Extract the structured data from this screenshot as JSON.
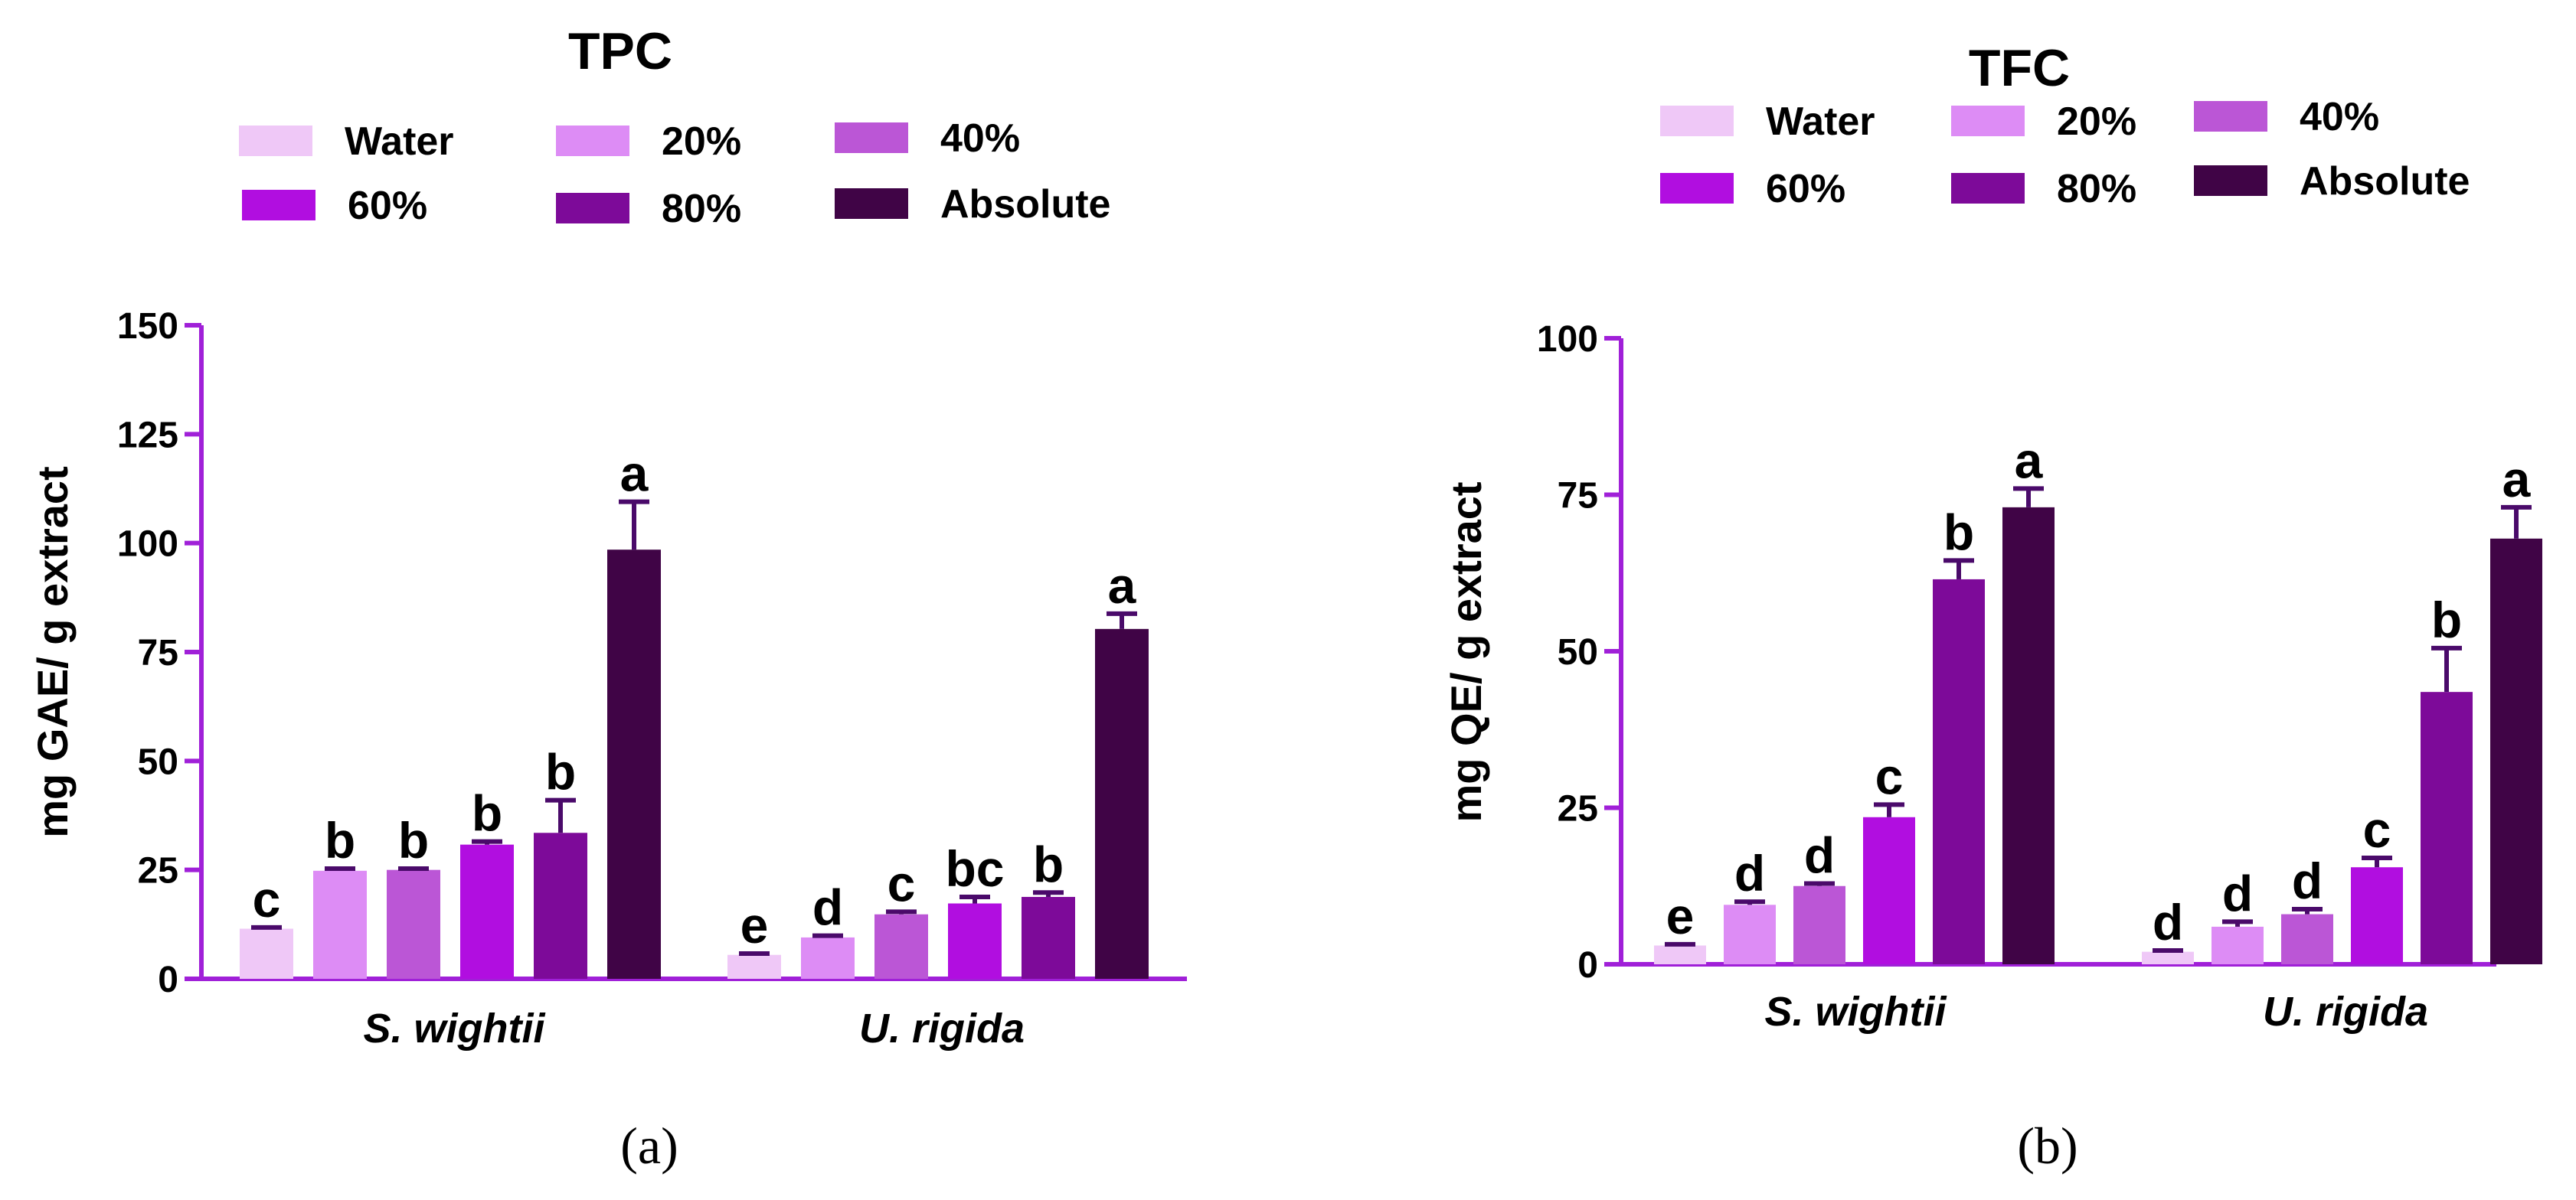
{
  "colors": {
    "axis": "#a020d8",
    "error": "#4a0a6a",
    "series": [
      "#efc8f7",
      "#dd8cf5",
      "#bb56d6",
      "#b10ee0",
      "#7d0a99",
      "#400446"
    ]
  },
  "chart_data": [
    {
      "type": "bar",
      "title": "TPC",
      "panel_label": "(a)",
      "ylabel": "mg GAE/ g extract",
      "xlabel": "",
      "ylim": [
        0,
        150
      ],
      "yticks": [
        "0",
        "25",
        "50",
        "75",
        "100",
        "125",
        "150"
      ],
      "categories": [
        "S. wightii",
        "U. rigida"
      ],
      "series": [
        {
          "name": "Water",
          "values": [
            11.5,
            5.5
          ],
          "errors": [
            0.3,
            0.3
          ],
          "letters": [
            "c",
            "e"
          ]
        },
        {
          "name": "20%",
          "values": [
            24.8,
            9.5
          ],
          "errors": [
            0.5,
            0.4
          ],
          "letters": [
            "b",
            "d"
          ]
        },
        {
          "name": "40%",
          "values": [
            25.0,
            14.8
          ],
          "errors": [
            0.3,
            0.6
          ],
          "letters": [
            "b",
            "c"
          ]
        },
        {
          "name": "60%",
          "values": [
            30.8,
            17.3
          ],
          "errors": [
            0.7,
            1.5
          ],
          "letters": [
            "b",
            "bc"
          ]
        },
        {
          "name": "80%",
          "values": [
            33.5,
            18.8
          ],
          "errors": [
            7.5,
            1.0
          ],
          "letters": [
            "b",
            "b"
          ]
        },
        {
          "name": "Absolute",
          "values": [
            98.5,
            80.3
          ],
          "errors": [
            11.0,
            3.5
          ],
          "letters": [
            "a",
            "a"
          ]
        }
      ]
    },
    {
      "type": "bar",
      "title": "TFC",
      "panel_label": "(b)",
      "ylabel": "mg QE/ g extract",
      "xlabel": "",
      "ylim": [
        0,
        100
      ],
      "yticks": [
        "0",
        "25",
        "50",
        "75",
        "100"
      ],
      "categories": [
        "S. wightii",
        "U. rigida"
      ],
      "series": [
        {
          "name": "Water",
          "values": [
            3.0,
            2.0
          ],
          "errors": [
            0.2,
            0.2
          ],
          "letters": [
            "e",
            "d"
          ]
        },
        {
          "name": "20%",
          "values": [
            9.5,
            6.0
          ],
          "errors": [
            0.5,
            0.8
          ],
          "letters": [
            "d",
            "d"
          ]
        },
        {
          "name": "40%",
          "values": [
            12.5,
            8.0
          ],
          "errors": [
            0.4,
            0.8
          ],
          "letters": [
            "d",
            "d"
          ]
        },
        {
          "name": "60%",
          "values": [
            23.5,
            15.5
          ],
          "errors": [
            2.0,
            1.5
          ],
          "letters": [
            "c",
            "c"
          ]
        },
        {
          "name": "80%",
          "values": [
            61.5,
            43.5
          ],
          "errors": [
            3.0,
            7.0
          ],
          "letters": [
            "b",
            "b"
          ]
        },
        {
          "name": "Absolute",
          "values": [
            73.0,
            68.0
          ],
          "errors": [
            3.0,
            5.0
          ],
          "letters": [
            "a",
            "a"
          ]
        }
      ]
    }
  ]
}
